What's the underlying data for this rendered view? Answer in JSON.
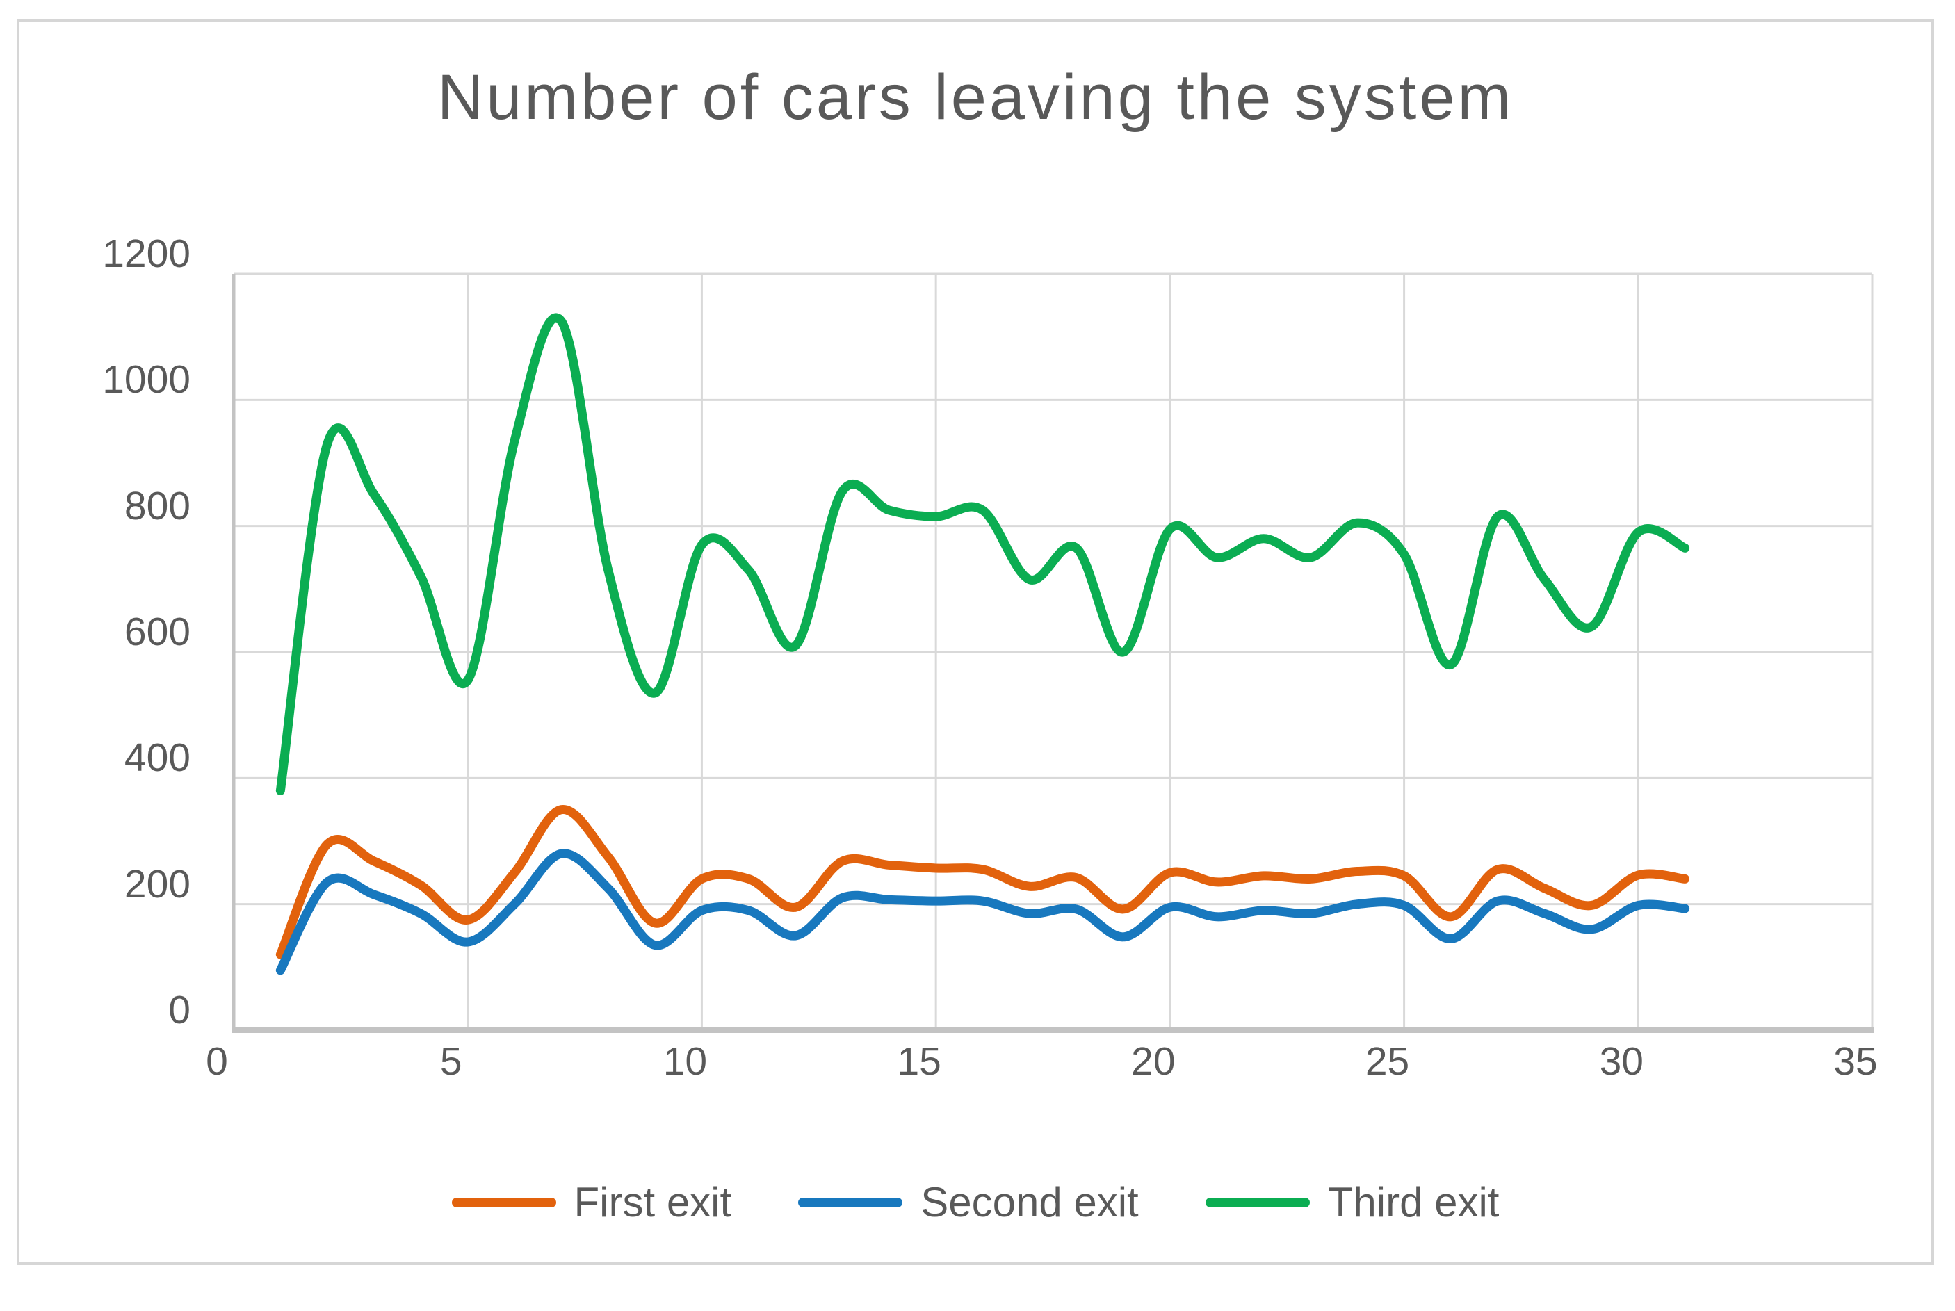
{
  "title": "Number of cars leaving the system",
  "colors": {
    "text": "#595959",
    "gridline": "#d9d9d9",
    "axis_line": "#c3c3c3",
    "frame_border": "#d6d6d6",
    "background": "#ffffff",
    "first_exit": "#e2620d",
    "second_exit": "#1878be",
    "third_exit": "#0bad52"
  },
  "legend": [
    {
      "label": "First exit",
      "color": "#e2620d"
    },
    {
      "label": "Second exit",
      "color": "#1878be"
    },
    {
      "label": "Third exit",
      "color": "#0bad52"
    }
  ],
  "axes": {
    "x_ticks": [
      0,
      5,
      10,
      15,
      20,
      25,
      30,
      35
    ],
    "y_ticks": [
      0,
      200,
      400,
      600,
      800,
      1000,
      1200
    ]
  },
  "chart_data": {
    "type": "line",
    "title": "Number of cars leaving the system",
    "xlabel": "",
    "ylabel": "",
    "xlim": [
      0,
      35
    ],
    "ylim": [
      0,
      1200
    ],
    "grid": true,
    "smooth": true,
    "legend_position": "bottom",
    "x": [
      1,
      2,
      3,
      4,
      5,
      6,
      7,
      8,
      9,
      10,
      11,
      12,
      13,
      14,
      15,
      16,
      17,
      18,
      19,
      20,
      21,
      22,
      23,
      24,
      25,
      26,
      27,
      28,
      29,
      30,
      31
    ],
    "series": [
      {
        "name": "First exit",
        "color": "#e2620d",
        "values": [
          120,
          295,
          268,
          230,
          175,
          250,
          350,
          275,
          170,
          240,
          240,
          195,
          268,
          262,
          257,
          255,
          228,
          242,
          192,
          250,
          235,
          245,
          240,
          252,
          245,
          180,
          255,
          225,
          198,
          246,
          240
        ]
      },
      {
        "name": "Second exit",
        "color": "#1878be",
        "values": [
          95,
          235,
          215,
          185,
          140,
          200,
          280,
          225,
          135,
          190,
          190,
          150,
          210,
          207,
          205,
          205,
          185,
          192,
          148,
          195,
          180,
          190,
          185,
          200,
          198,
          145,
          205,
          185,
          160,
          198,
          193
        ]
      },
      {
        "name": "Third exit",
        "color": "#0bad52",
        "values": [
          380,
          930,
          850,
          720,
          555,
          935,
          1125,
          730,
          535,
          770,
          730,
          610,
          855,
          825,
          815,
          825,
          715,
          765,
          600,
          795,
          750,
          780,
          750,
          805,
          755,
          580,
          815,
          715,
          640,
          790,
          765
        ]
      }
    ]
  }
}
